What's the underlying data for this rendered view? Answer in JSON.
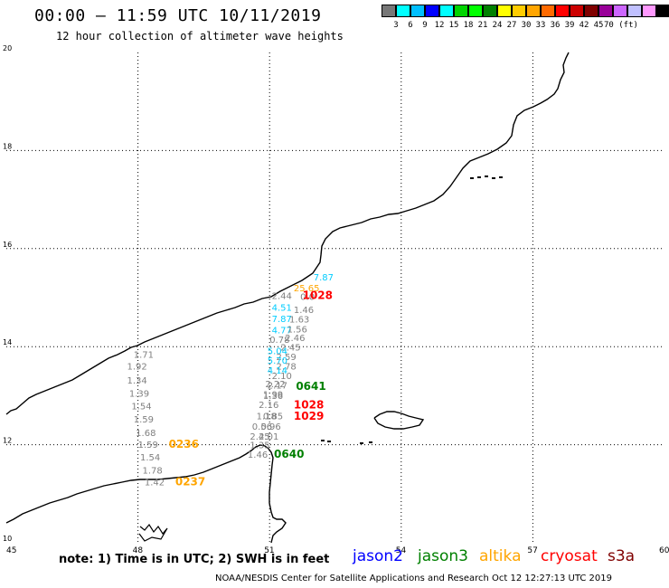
{
  "header": {
    "title": "00:00 – 11:59 UTC 10/11/2019",
    "subtitle": "12 hour collection of altimeter wave heights"
  },
  "colorbar": {
    "colors": [
      "#777777",
      "#00ffff",
      "#00bfff",
      "#0000ff",
      "#00ffff",
      "#00d400",
      "#00ff00",
      "#008000",
      "#ffff00",
      "#ffcc00",
      "#ffa500",
      "#ff6a00",
      "#ff0000",
      "#cc0000",
      "#800000",
      "#990099",
      "#cc66ff",
      "#c0c0ff",
      "#ff99ff",
      "#000000"
    ],
    "labels": [
      "3",
      "6",
      "9",
      "12",
      "15",
      "18",
      "21",
      "24",
      "27",
      "30",
      "33",
      "36",
      "39",
      "42",
      "45",
      "70 (ft)"
    ]
  },
  "axes": {
    "x_ticks": [
      "45",
      "48",
      "51",
      "54",
      "57",
      "60"
    ],
    "y_ticks": [
      "20",
      "18",
      "16",
      "14",
      "12",
      "10"
    ]
  },
  "annotations": [
    {
      "text": "7.87",
      "lon": 52.0,
      "lat": 15.35,
      "color": "#00ccff"
    },
    {
      "text": "25.65",
      "lon": 51.55,
      "lat": 15.13,
      "color": "#ffa500"
    },
    {
      "text": "2.44",
      "lon": 51.05,
      "lat": 14.97,
      "color": "#808080"
    },
    {
      "text": "0.0",
      "lon": 51.7,
      "lat": 14.95,
      "color": "#808080"
    },
    {
      "text": "1028",
      "lon": 51.75,
      "lat": 14.97,
      "color": "#ff0000"
    },
    {
      "text": "4.51",
      "lon": 51.05,
      "lat": 14.73,
      "color": "#00ccff"
    },
    {
      "text": "1.46",
      "lon": 51.55,
      "lat": 14.69,
      "color": "#808080"
    },
    {
      "text": "7.87",
      "lon": 51.05,
      "lat": 14.5,
      "color": "#00ccff"
    },
    {
      "text": "1.63",
      "lon": 51.45,
      "lat": 14.49,
      "color": "#808080"
    },
    {
      "text": "4.77",
      "lon": 51.05,
      "lat": 14.27,
      "color": "#00ccff"
    },
    {
      "text": "1.56",
      "lon": 51.4,
      "lat": 14.29,
      "color": "#808080"
    },
    {
      "text": "0.78",
      "lon": 51.0,
      "lat": 14.08,
      "color": "#808080"
    },
    {
      "text": "2.46",
      "lon": 51.35,
      "lat": 14.11,
      "color": "#808080"
    },
    {
      "text": "2.45",
      "lon": 51.25,
      "lat": 13.92,
      "color": "#808080"
    },
    {
      "text": "5.04",
      "lon": 50.95,
      "lat": 13.85,
      "color": "#00ccff"
    },
    {
      "text": "2.59",
      "lon": 51.15,
      "lat": 13.73,
      "color": "#808080"
    },
    {
      "text": "5.70",
      "lon": 50.95,
      "lat": 13.65,
      "color": "#00ccff"
    },
    {
      "text": "2.78",
      "lon": 51.15,
      "lat": 13.53,
      "color": "#808080"
    },
    {
      "text": "4.14",
      "lon": 50.95,
      "lat": 13.45,
      "color": "#00ccff"
    },
    {
      "text": "2.10",
      "lon": 51.05,
      "lat": 13.34,
      "color": "#808080"
    },
    {
      "text": "2.22",
      "lon": 50.9,
      "lat": 13.17,
      "color": "#808080"
    },
    {
      "text": "2.17",
      "lon": 50.95,
      "lat": 13.15,
      "color": "#808080"
    },
    {
      "text": "0641",
      "lon": 51.6,
      "lat": 13.12,
      "color": "#008000"
    },
    {
      "text": "1.99",
      "lon": 50.85,
      "lat": 12.96,
      "color": "#808080"
    },
    {
      "text": "1.36",
      "lon": 50.85,
      "lat": 12.93,
      "color": "#808080"
    },
    {
      "text": "2.16",
      "lon": 50.75,
      "lat": 12.75,
      "color": "#808080"
    },
    {
      "text": "1028",
      "lon": 51.55,
      "lat": 12.74,
      "color": "#ff0000"
    },
    {
      "text": "1.18",
      "lon": 50.7,
      "lat": 12.52,
      "color": "#808080"
    },
    {
      "text": "0.85",
      "lon": 50.85,
      "lat": 12.52,
      "color": "#808080"
    },
    {
      "text": "1029",
      "lon": 51.55,
      "lat": 12.51,
      "color": "#ff0000"
    },
    {
      "text": "0.56",
      "lon": 50.6,
      "lat": 12.31,
      "color": "#808080"
    },
    {
      "text": "0.96",
      "lon": 50.8,
      "lat": 12.31,
      "color": "#808080"
    },
    {
      "text": "2.45",
      "lon": 50.55,
      "lat": 12.1,
      "color": "#808080"
    },
    {
      "text": "2.01",
      "lon": 50.75,
      "lat": 12.1,
      "color": "#808080"
    },
    {
      "text": "1.35",
      "lon": 50.55,
      "lat": 11.93,
      "color": "#808080"
    },
    {
      "text": "1.46",
      "lon": 50.5,
      "lat": 11.73,
      "color": "#808080"
    },
    {
      "text": "0640",
      "lon": 51.1,
      "lat": 11.73,
      "color": "#008000"
    },
    {
      "text": "1.71",
      "lon": 47.9,
      "lat": 13.77,
      "color": "#808080"
    },
    {
      "text": "1.92",
      "lon": 47.75,
      "lat": 13.53,
      "color": "#808080"
    },
    {
      "text": "1.34",
      "lon": 47.75,
      "lat": 13.25,
      "color": "#808080"
    },
    {
      "text": "1.39",
      "lon": 47.8,
      "lat": 12.98,
      "color": "#808080"
    },
    {
      "text": "1.54",
      "lon": 47.85,
      "lat": 12.72,
      "color": "#808080"
    },
    {
      "text": "1.59",
      "lon": 47.9,
      "lat": 12.45,
      "color": "#808080"
    },
    {
      "text": "1.68",
      "lon": 47.95,
      "lat": 12.18,
      "color": "#808080"
    },
    {
      "text": "1.59",
      "lon": 48.0,
      "lat": 11.94,
      "color": "#808080"
    },
    {
      "text": "0236",
      "lon": 48.7,
      "lat": 11.94,
      "color": "#ffa500"
    },
    {
      "text": "1.54",
      "lon": 48.05,
      "lat": 11.68,
      "color": "#808080"
    },
    {
      "text": "1.78",
      "lon": 48.1,
      "lat": 11.41,
      "color": "#808080"
    },
    {
      "text": "1.42",
      "lon": 48.15,
      "lat": 11.17,
      "color": "#808080"
    },
    {
      "text": "0237",
      "lon": 48.85,
      "lat": 11.17,
      "color": "#ffa500"
    }
  ],
  "footer": {
    "note": "note:  1) Time is in UTC;  2) SWH is in feet",
    "legend": [
      {
        "label": "jason2",
        "color": "#0000ff"
      },
      {
        "label": "jason3",
        "color": "#008000"
      },
      {
        "label": "altika",
        "color": "#ffa500"
      },
      {
        "label": "cryosat",
        "color": "#ff0000"
      },
      {
        "label": "s3a",
        "color": "#800000"
      }
    ],
    "credit": "NOAA/NESDIS Center for Satellite Applications and Research    Oct 12 12:27:13 UTC 2019"
  }
}
